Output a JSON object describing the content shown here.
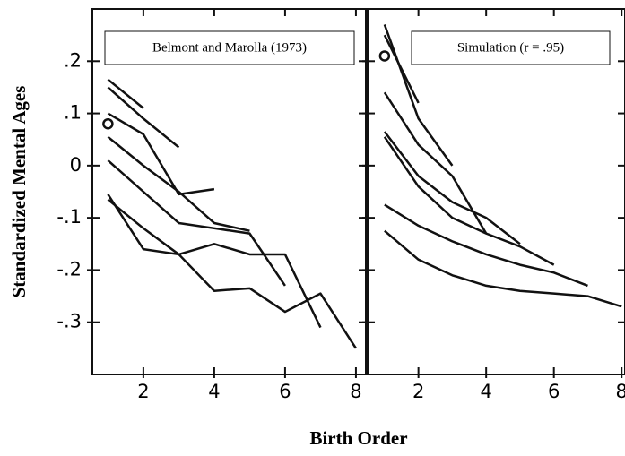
{
  "chart_data": [
    {
      "type": "line",
      "annotation": "Belmont and Marolla (1973)",
      "ylabel": "Standardized Mental Ages",
      "xlabel": "Birth Order",
      "x": [
        1,
        2,
        3,
        4,
        5,
        6,
        7,
        8
      ],
      "xlim": [
        0.56,
        8.28
      ],
      "xticks": [
        2,
        4,
        6,
        8
      ],
      "ylim": [
        -0.4,
        0.3
      ],
      "yticks": [
        {
          "value": -0.3,
          "label": "-.3"
        },
        {
          "value": -0.2,
          "label": "-.2"
        },
        {
          "value": -0.1,
          "label": "-.1"
        },
        0,
        {
          "value": 0.1,
          "label": ".1"
        },
        {
          "value": 0.2,
          "label": ".2"
        }
      ],
      "color": "#111111",
      "series": [
        {
          "values": [
            0.08,
            null,
            null,
            null,
            null,
            null,
            null,
            null
          ]
        },
        {
          "values": [
            0.165,
            0.11,
            null,
            null,
            null,
            null,
            null,
            null
          ]
        },
        {
          "values": [
            0.15,
            0.09,
            0.035,
            null,
            null,
            null,
            null,
            null
          ]
        },
        {
          "values": [
            0.1,
            0.06,
            -0.055,
            -0.045,
            null,
            null,
            null,
            null
          ]
        },
        {
          "values": [
            0.055,
            0.0,
            -0.05,
            -0.11,
            -0.125,
            null,
            null,
            null
          ]
        },
        {
          "values": [
            0.01,
            -0.05,
            -0.11,
            -0.12,
            -0.13,
            -0.23,
            null,
            null
          ]
        },
        {
          "values": [
            -0.055,
            -0.16,
            -0.17,
            -0.15,
            -0.17,
            -0.17,
            -0.31,
            null
          ]
        },
        {
          "values": [
            -0.065,
            -0.12,
            -0.17,
            -0.24,
            -0.235,
            -0.28,
            -0.245,
            -0.35
          ]
        }
      ]
    },
    {
      "type": "line",
      "annotation": "Simulation (r = .95)",
      "x": [
        1,
        2,
        3,
        4,
        5,
        6,
        7,
        8
      ],
      "xlim": [
        0.5,
        8.1
      ],
      "xticks": [
        2,
        4,
        6,
        8
      ],
      "ylim": [
        -0.4,
        0.3
      ],
      "yticks": [
        -0.3,
        -0.2,
        -0.1,
        0,
        0.1,
        0.2
      ],
      "color": "#111111",
      "series": [
        {
          "values": [
            0.21,
            null,
            null,
            null,
            null,
            null,
            null,
            null
          ]
        },
        {
          "values": [
            0.25,
            0.12,
            null,
            null,
            null,
            null,
            null,
            null
          ]
        },
        {
          "values": [
            0.27,
            0.09,
            0.0,
            null,
            null,
            null,
            null,
            null
          ]
        },
        {
          "values": [
            0.14,
            0.04,
            -0.02,
            -0.13,
            null,
            null,
            null,
            null
          ]
        },
        {
          "values": [
            0.065,
            -0.02,
            -0.07,
            -0.1,
            -0.15,
            null,
            null,
            null
          ]
        },
        {
          "values": [
            0.055,
            -0.04,
            -0.1,
            -0.13,
            -0.155,
            -0.19,
            null,
            null
          ]
        },
        {
          "values": [
            -0.075,
            -0.115,
            -0.145,
            -0.17,
            -0.19,
            -0.205,
            -0.23,
            null
          ]
        },
        {
          "values": [
            -0.125,
            -0.18,
            -0.21,
            -0.23,
            -0.24,
            -0.245,
            -0.25,
            -0.27
          ]
        }
      ]
    }
  ]
}
